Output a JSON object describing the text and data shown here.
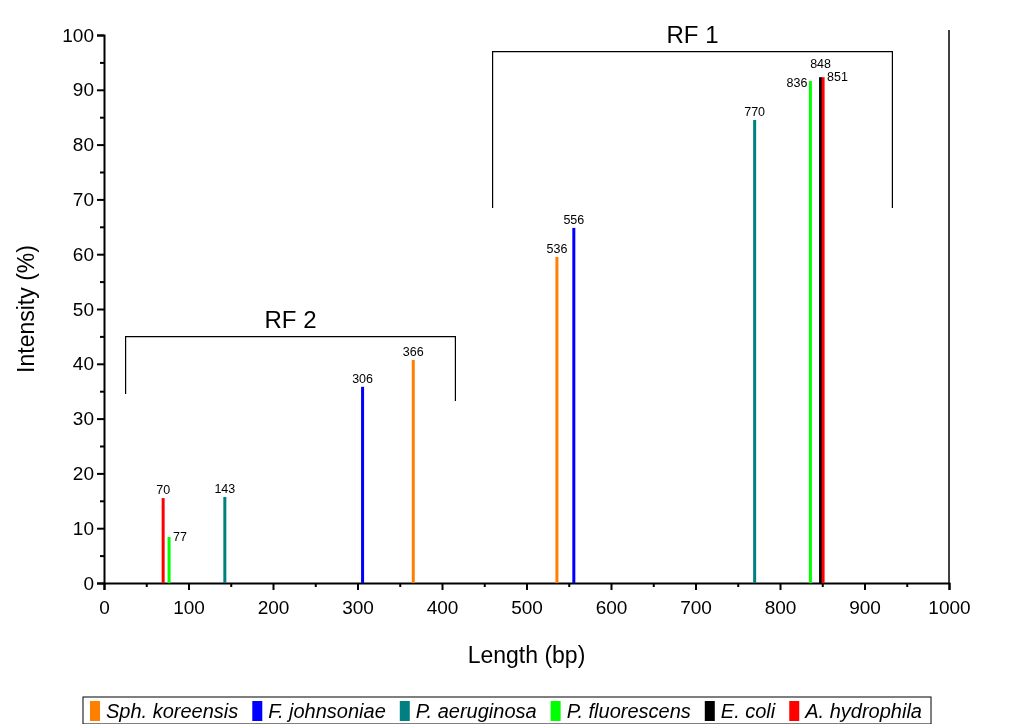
{
  "chart_data": {
    "type": "bar",
    "xlabel": "Length (bp)",
    "ylabel": "Intensity (%)",
    "xlim": [
      0,
      1000
    ],
    "ylim": [
      0,
      100
    ],
    "xticks": [
      0,
      {
        "value": 50,
        "label": null
      },
      100,
      {
        "value": 150,
        "label": null
      },
      200,
      {
        "value": 250,
        "label": null
      },
      300,
      {
        "value": 350,
        "label": null
      },
      400,
      {
        "value": 450,
        "label": null
      },
      500,
      {
        "value": 550,
        "label": null
      },
      600,
      {
        "value": 650,
        "label": null
      },
      700,
      {
        "value": 750,
        "label": null
      },
      800,
      {
        "value": 850,
        "label": null
      },
      900,
      {
        "value": 950,
        "label": null
      },
      1000
    ],
    "yticks": [
      0,
      {
        "value": 5,
        "label": null
      },
      10,
      {
        "value": 15,
        "label": null
      },
      20,
      {
        "value": 25,
        "label": null
      },
      30,
      {
        "value": 35,
        "label": null
      },
      40,
      {
        "value": 45,
        "label": null
      },
      50,
      {
        "value": 55,
        "label": null
      },
      60,
      {
        "value": 65,
        "label": null
      },
      70,
      {
        "value": 75,
        "label": null
      },
      80,
      {
        "value": 85,
        "label": null
      },
      90,
      {
        "value": 95,
        "label": null
      },
      100
    ],
    "series": [
      {
        "name": "Sph. koreensis",
        "color": "#ff8000",
        "x": [
          366,
          536
        ],
        "values": [
          40.7,
          59.5
        ]
      },
      {
        "name": "F. johnsoniae",
        "color": "#0000ff",
        "x": [
          306,
          556
        ],
        "values": [
          35.8,
          64.8
        ]
      },
      {
        "name": "P. aeruginosa",
        "color": "#008080",
        "x": [
          143,
          770
        ],
        "values": [
          15.7,
          84.5
        ]
      },
      {
        "name": "P. fluorescens",
        "color": "#00ff00",
        "x": [
          77,
          836
        ],
        "values": [
          8.4,
          91.6
        ]
      },
      {
        "name": "E. coli",
        "color": "#000000",
        "x": [
          848
        ],
        "values": [
          92.3
        ]
      },
      {
        "name": "A. hydrophila",
        "color": "#ff0000",
        "x": [
          70,
          851
        ],
        "values": [
          15.5,
          92.3
        ]
      }
    ],
    "annotations": [
      "RF 2",
      "RF 1",
      {
        "text": "70",
        "x": 70,
        "y": 15.5
      },
      {
        "text": "77",
        "x": 77,
        "y": 8.4
      },
      {
        "text": "143",
        "x": 143,
        "y": 15.7
      },
      {
        "text": "306",
        "x": 306,
        "y": 35.8
      },
      {
        "text": "366",
        "x": 366,
        "y": 40.7
      },
      {
        "text": "536",
        "x": 536,
        "y": 59.5
      },
      {
        "text": "556",
        "x": 556,
        "y": 64.8
      },
      {
        "text": "770",
        "x": 770,
        "y": 84.5
      },
      {
        "text": "836",
        "x": 836,
        "y": 91.6
      },
      {
        "text": "848",
        "x": 848,
        "y": 92.3
      },
      {
        "text": "851",
        "x": 851,
        "y": 92.3
      }
    ],
    "legend": "bottom",
    "grid": false
  }
}
